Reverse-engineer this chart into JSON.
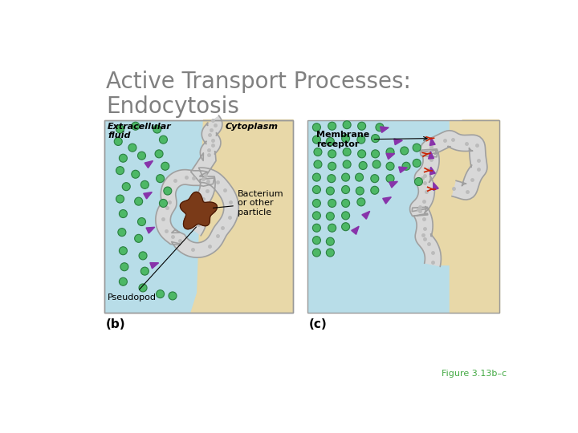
{
  "title": "Active Transport Processes:\nEndocytosis",
  "title_color": "#808080",
  "title_fontsize": 20,
  "bg_color": "#ffffff",
  "ec_color": "#b8dde8",
  "cy_color": "#e8d8a8",
  "membrane_fill": "#d8d8d8",
  "membrane_edge": "#a0a0a0",
  "bacterium_color": "#7a3a18",
  "green_color": "#4db866",
  "green_edge": "#2a8040",
  "purple_color": "#8833aa",
  "red_color": "#cc2200",
  "figure_label_color": "#44aa44",
  "figure_label": "Figure 3.13b–c",
  "label_b": "(b)",
  "label_c": "(c)",
  "lbl_extracellular": "Extracellular\nfluid",
  "lbl_cytoplasm": "Cytoplasm",
  "lbl_bacterium": "Bacterium\nor other\nparticle",
  "lbl_pseudopod": "Pseudopod",
  "lbl_membrane_receptor": "Membrane\nreceptor"
}
